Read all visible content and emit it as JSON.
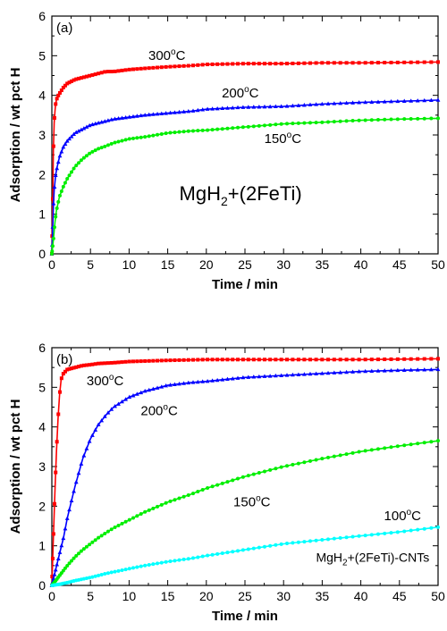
{
  "chart_data": [
    {
      "type": "line",
      "panel_label": "(a)",
      "xlabel": "Time / min",
      "ylabel": "Adsorption / wt pct H",
      "xlim": [
        0,
        50
      ],
      "ylim": [
        0,
        6
      ],
      "xticks": [
        "0",
        "5",
        "10",
        "15",
        "20",
        "25",
        "30",
        "35",
        "40",
        "45",
        "50"
      ],
      "yticks": [
        "0",
        "1",
        "2",
        "3",
        "4",
        "5",
        "6"
      ],
      "grid": false,
      "sample_label": {
        "main": "MgH",
        "sub": "2",
        "rest": "+(2FeTi)"
      },
      "series": [
        {
          "name": "300°C",
          "temp": "300",
          "color": "#ff0000",
          "marker": "square",
          "label_pos": [
            12.5,
            4.9
          ],
          "x": [
            0,
            0.1,
            0.2,
            0.3,
            0.4,
            0.5,
            0.7,
            1,
            1.5,
            2,
            2.5,
            3,
            4,
            5,
            6,
            7,
            8,
            10,
            12,
            15,
            18,
            20,
            25,
            30,
            35,
            40,
            45,
            50
          ],
          "values": [
            0,
            1.2,
            2.6,
            3.3,
            3.6,
            3.8,
            3.95,
            4.05,
            4.2,
            4.3,
            4.35,
            4.4,
            4.45,
            4.5,
            4.55,
            4.6,
            4.6,
            4.65,
            4.68,
            4.72,
            4.75,
            4.78,
            4.8,
            4.8,
            4.82,
            4.82,
            4.83,
            4.84
          ]
        },
        {
          "name": "200°C",
          "temp": "200",
          "color": "#0000ff",
          "marker": "triangle",
          "label_pos": [
            22,
            3.95
          ],
          "x": [
            0,
            0.1,
            0.2,
            0.3,
            0.5,
            0.7,
            1,
            1.5,
            2,
            3,
            4,
            5,
            6,
            7,
            8,
            10,
            12,
            15,
            18,
            20,
            25,
            30,
            35,
            40,
            45,
            50
          ],
          "values": [
            0,
            0.6,
            1.2,
            1.6,
            2.0,
            2.2,
            2.45,
            2.7,
            2.85,
            3.05,
            3.15,
            3.25,
            3.3,
            3.35,
            3.4,
            3.45,
            3.5,
            3.55,
            3.6,
            3.65,
            3.7,
            3.72,
            3.78,
            3.82,
            3.85,
            3.88
          ]
        },
        {
          "name": "150°C",
          "temp": "150",
          "color": "#00ee00",
          "marker": "circle",
          "label_pos": [
            27.5,
            2.8
          ],
          "x": [
            0,
            0.2,
            0.4,
            0.6,
            1,
            1.5,
            2,
            3,
            4,
            5,
            6,
            7,
            8,
            10,
            12,
            15,
            18,
            20,
            25,
            30,
            35,
            40,
            45,
            50
          ],
          "values": [
            0,
            0.35,
            0.8,
            1.1,
            1.45,
            1.7,
            1.9,
            2.2,
            2.4,
            2.55,
            2.65,
            2.72,
            2.8,
            2.9,
            2.95,
            3.05,
            3.1,
            3.12,
            3.2,
            3.28,
            3.32,
            3.37,
            3.4,
            3.42
          ]
        }
      ]
    },
    {
      "type": "line",
      "panel_label": "(b)",
      "xlabel": "Time / min",
      "ylabel": "Adsorption / wt pct H",
      "xlim": [
        0,
        50
      ],
      "ylim": [
        0,
        6
      ],
      "xticks": [
        "0",
        "5",
        "10",
        "15",
        "20",
        "25",
        "30",
        "35",
        "40",
        "45",
        "50"
      ],
      "yticks": [
        "0",
        "1",
        "2",
        "3",
        "4",
        "5",
        "6"
      ],
      "grid": false,
      "sample_label": {
        "main": "MgH",
        "sub": "2",
        "rest": "+(2FeTi)-CNTs"
      },
      "series": [
        {
          "name": "300°C",
          "temp": "300",
          "color": "#ff0000",
          "marker": "square",
          "label_pos": [
            4.5,
            5.05
          ],
          "x": [
            0,
            0.2,
            0.4,
            0.6,
            0.8,
            1,
            1.2,
            1.5,
            2,
            3,
            4,
            5,
            6,
            8,
            10,
            15,
            20,
            25,
            30,
            40,
            50
          ],
          "values": [
            0,
            1.2,
            2.4,
            3.4,
            4.2,
            4.8,
            5.2,
            5.35,
            5.45,
            5.5,
            5.55,
            5.57,
            5.6,
            5.62,
            5.65,
            5.68,
            5.7,
            5.7,
            5.7,
            5.7,
            5.72
          ]
        },
        {
          "name": "200°C",
          "temp": "200",
          "color": "#0000ff",
          "marker": "triangle",
          "label_pos": [
            11.5,
            4.3
          ],
          "x": [
            0,
            0.5,
            1,
            1.5,
            2,
            3,
            4,
            5,
            6,
            7,
            8,
            10,
            12,
            15,
            18,
            20,
            25,
            30,
            35,
            40,
            45,
            50
          ],
          "values": [
            0,
            0.4,
            0.8,
            1.2,
            1.7,
            2.5,
            3.2,
            3.7,
            4.05,
            4.3,
            4.5,
            4.75,
            4.9,
            5.05,
            5.12,
            5.15,
            5.25,
            5.3,
            5.35,
            5.4,
            5.43,
            5.45
          ]
        },
        {
          "name": "150°C",
          "temp": "150",
          "color": "#00ee00",
          "marker": "circle",
          "label_pos": [
            23.5,
            2.0
          ],
          "x": [
            0,
            0.5,
            1,
            2,
            3,
            4,
            5,
            6,
            8,
            10,
            12,
            15,
            18,
            20,
            25,
            30,
            35,
            40,
            45,
            50
          ],
          "values": [
            0,
            0.12,
            0.25,
            0.5,
            0.72,
            0.9,
            1.05,
            1.2,
            1.45,
            1.65,
            1.85,
            2.1,
            2.3,
            2.45,
            2.75,
            3.0,
            3.2,
            3.38,
            3.52,
            3.65
          ]
        },
        {
          "name": "100°C",
          "temp": "100",
          "color": "#00ffff",
          "marker": "circle",
          "label_pos": [
            43,
            1.65
          ],
          "x": [
            0,
            1,
            2,
            3,
            5,
            7,
            10,
            12,
            15,
            18,
            20,
            25,
            30,
            35,
            40,
            45,
            50
          ],
          "values": [
            0,
            0.03,
            0.07,
            0.12,
            0.2,
            0.3,
            0.42,
            0.5,
            0.6,
            0.68,
            0.75,
            0.9,
            1.05,
            1.15,
            1.25,
            1.35,
            1.47
          ]
        }
      ]
    }
  ]
}
